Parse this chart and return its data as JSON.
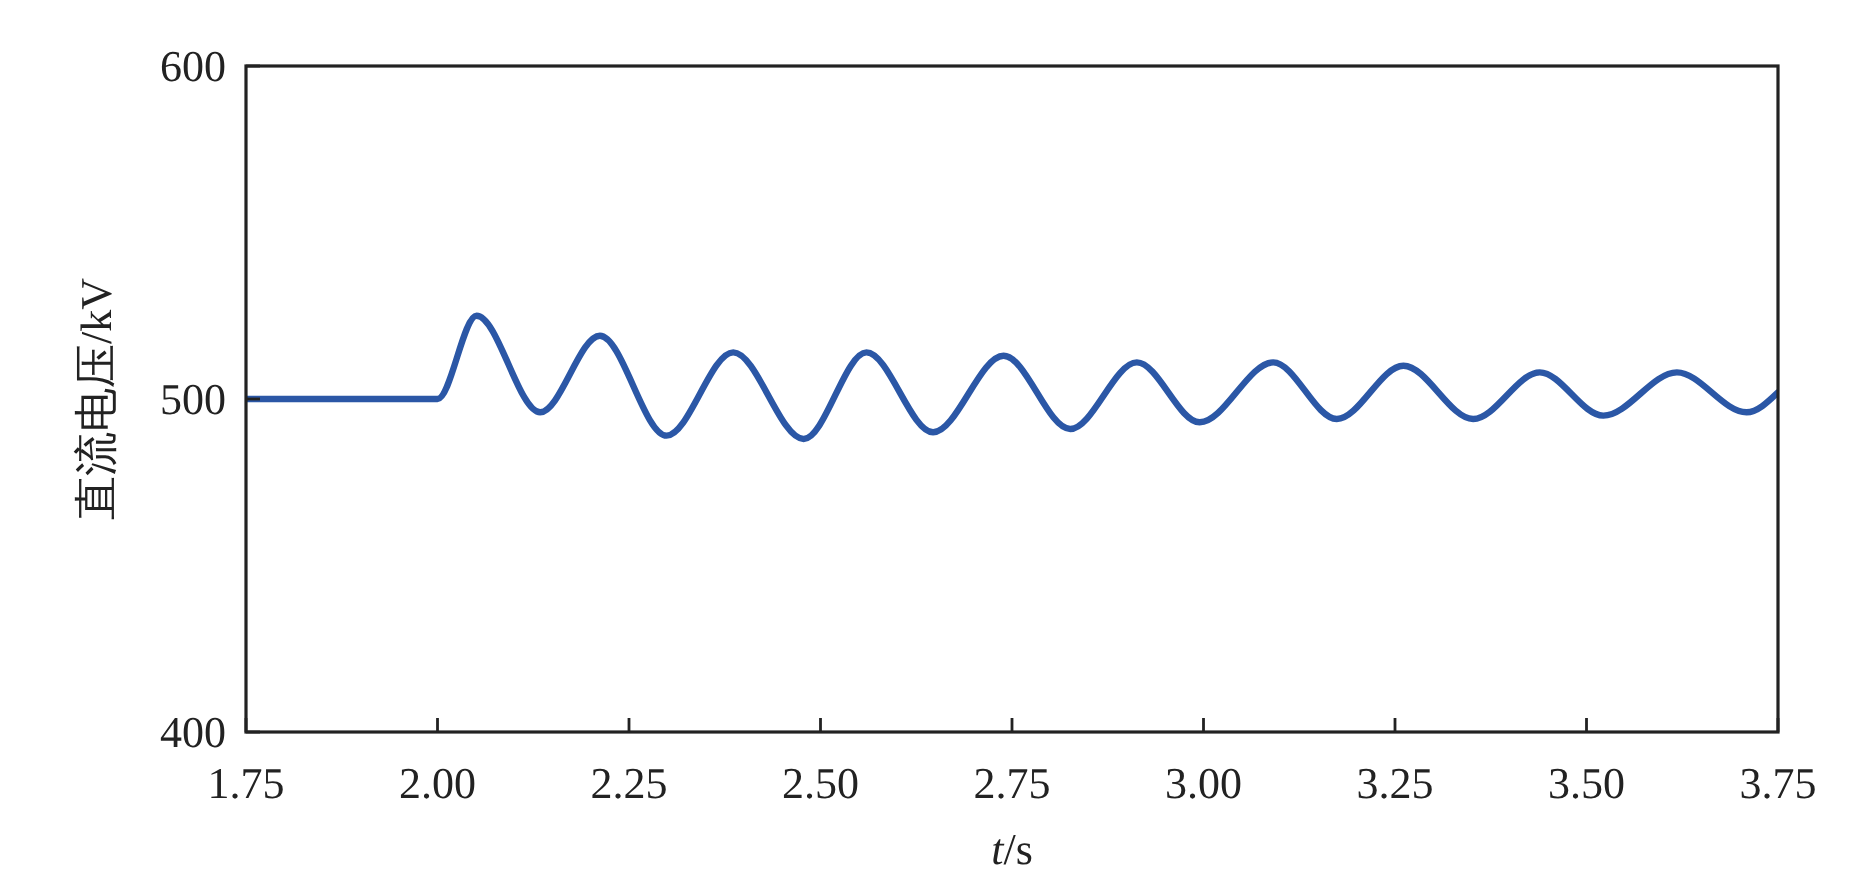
{
  "chart_data": {
    "type": "line",
    "xlabel": "t/s",
    "ylabel": "直流电压/kV",
    "xlim": [
      1.75,
      3.75
    ],
    "xticks": [
      {
        "value": 1.75,
        "label": "1.75"
      },
      {
        "value": 2.0,
        "label": "2.00"
      },
      {
        "value": 2.25,
        "label": "2.25"
      },
      {
        "value": 2.5,
        "label": "2.50"
      },
      {
        "value": 2.75,
        "label": "2.75"
      },
      {
        "value": 3.0,
        "label": "3.00"
      },
      {
        "value": 3.25,
        "label": "3.25"
      },
      {
        "value": 3.5,
        "label": "3.50"
      },
      {
        "value": 3.75,
        "label": "3.75"
      }
    ],
    "ylim": [
      400,
      600
    ],
    "yticks": [
      400,
      500,
      600
    ],
    "series": [
      {
        "color": "#2b57a6",
        "x": [
          1.75,
          1.85,
          1.95,
          2.0,
          2.051,
          2.134,
          2.212,
          2.299,
          2.386,
          2.478,
          2.56,
          2.647,
          2.739,
          2.826,
          2.913,
          2.995,
          3.091,
          3.174,
          3.261,
          3.352,
          3.439,
          3.522,
          3.618,
          3.709,
          3.75
        ],
        "values": [
          500,
          500,
          500,
          500,
          525,
          496,
          519,
          489,
          514,
          488,
          514,
          490,
          513,
          491,
          511,
          493,
          511,
          494,
          510,
          494,
          508,
          495,
          508,
          496,
          502
        ]
      }
    ]
  }
}
